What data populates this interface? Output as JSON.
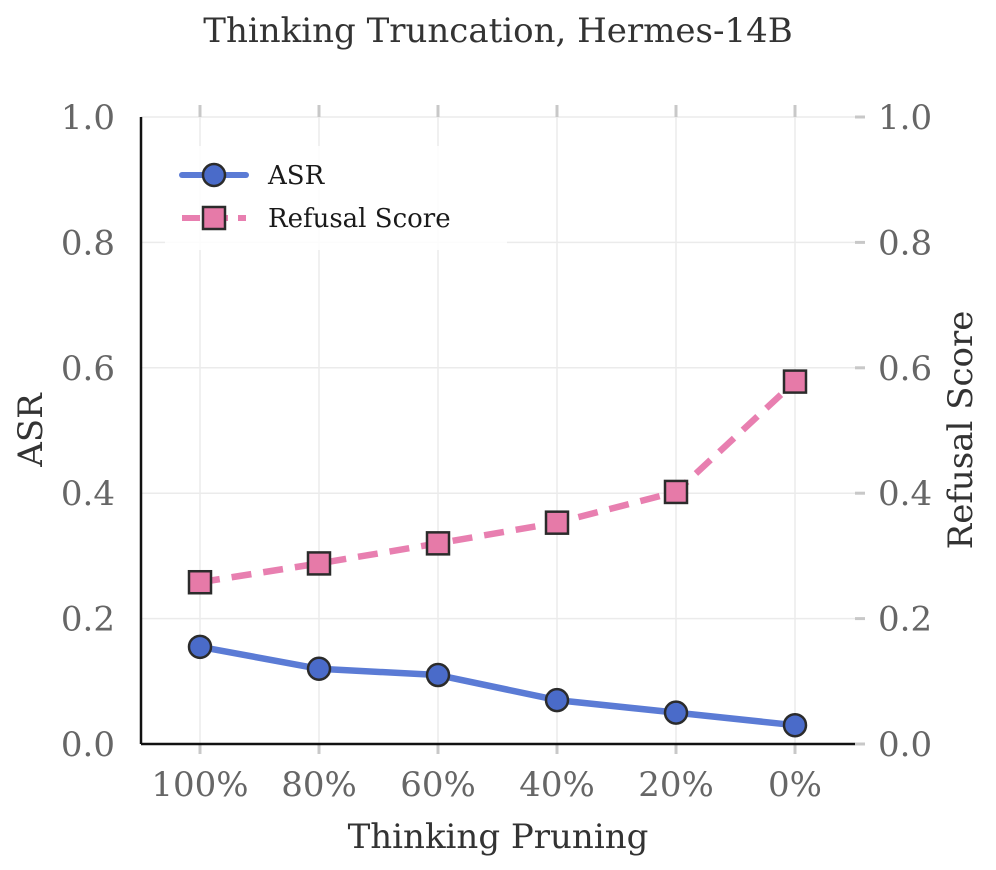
{
  "chart_data": {
    "type": "line",
    "title": "Thinking Truncation, Hermes-14B",
    "xlabel": "Thinking Pruning",
    "ylabel": "ASR",
    "y2label": "Refusal Score",
    "categories": [
      "100%",
      "80%",
      "60%",
      "40%",
      "20%",
      "0%"
    ],
    "ylim": [
      0,
      1
    ],
    "y2lim": [
      0,
      1
    ],
    "yticks": [
      "0.0",
      "0.2",
      "0.4",
      "0.6",
      "0.8",
      "1.0"
    ],
    "y2ticks": [
      "0.0",
      "0.2",
      "0.4",
      "0.6",
      "0.8",
      "1.0"
    ],
    "grid": true,
    "legend_position": "top-left",
    "series": [
      {
        "name": "ASR",
        "axis": "left",
        "values": [
          0.155,
          0.12,
          0.11,
          0.07,
          0.05,
          0.03
        ],
        "color": "#5b7bd5",
        "line_style": "solid",
        "marker": "circle",
        "marker_color": "#4a6bc9"
      },
      {
        "name": "Refusal Score",
        "axis": "right",
        "values": [
          0.258,
          0.288,
          0.32,
          0.353,
          0.402,
          0.578
        ],
        "color": "#e87fb0",
        "line_style": "dashed",
        "marker": "square",
        "marker_color": "#e67aa8"
      }
    ]
  }
}
